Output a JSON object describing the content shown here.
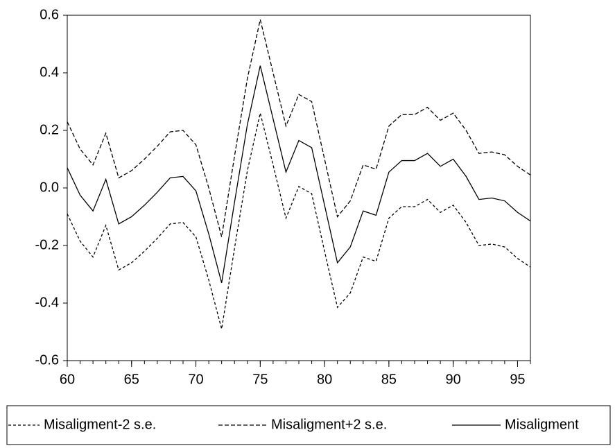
{
  "chart_data": {
    "type": "line",
    "x": [
      60,
      61,
      62,
      63,
      64,
      65,
      66,
      67,
      68,
      69,
      70,
      71,
      72,
      73,
      74,
      75,
      76,
      77,
      78,
      79,
      80,
      81,
      82,
      83,
      84,
      85,
      86,
      87,
      88,
      89,
      90,
      91,
      92,
      93,
      94,
      95,
      96
    ],
    "series": [
      {
        "name": "Misaligment-2 s.e.",
        "color": "#000",
        "dash": "4,3",
        "values": [
          -0.09,
          -0.185,
          -0.24,
          -0.13,
          -0.285,
          -0.26,
          -0.22,
          -0.175,
          -0.125,
          -0.12,
          -0.17,
          -0.32,
          -0.49,
          -0.21,
          0.06,
          0.26,
          0.08,
          -0.105,
          0.005,
          -0.02,
          -0.22,
          -0.415,
          -0.365,
          -0.24,
          -0.255,
          -0.105,
          -0.065,
          -0.065,
          -0.04,
          -0.085,
          -0.06,
          -0.12,
          -0.2,
          -0.195,
          -0.205,
          -0.245,
          -0.275
        ]
      },
      {
        "name": "Misaligment+2 s.e.",
        "color": "#000",
        "dash": "6,3",
        "values": [
          0.23,
          0.135,
          0.08,
          0.19,
          0.035,
          0.06,
          0.1,
          0.145,
          0.195,
          0.2,
          0.15,
          0.0,
          -0.17,
          0.11,
          0.38,
          0.585,
          0.4,
          0.215,
          0.325,
          0.3,
          0.1,
          -0.1,
          -0.045,
          0.08,
          0.065,
          0.215,
          0.255,
          0.255,
          0.28,
          0.235,
          0.26,
          0.2,
          0.12,
          0.125,
          0.115,
          0.075,
          0.045
        ]
      },
      {
        "name": "Misaligment",
        "color": "#000",
        "dash": "none",
        "values": [
          0.07,
          -0.025,
          -0.08,
          0.03,
          -0.125,
          -0.1,
          -0.06,
          -0.015,
          0.035,
          0.04,
          -0.01,
          -0.16,
          -0.33,
          -0.05,
          0.22,
          0.425,
          0.24,
          0.055,
          0.165,
          0.14,
          -0.06,
          -0.26,
          -0.205,
          -0.08,
          -0.095,
          0.055,
          0.095,
          0.095,
          0.12,
          0.075,
          0.1,
          0.04,
          -0.04,
          -0.035,
          -0.045,
          -0.085,
          -0.115
        ]
      }
    ],
    "xlim": [
      60,
      96
    ],
    "xticks": [
      60,
      65,
      70,
      75,
      80,
      85,
      90,
      95
    ],
    "ylim": [
      -0.6,
      0.6
    ],
    "yticks": [
      -0.6,
      -0.4,
      -0.2,
      {
        "value": 0,
        "label": "0.0"
      },
      0.2,
      0.4,
      0.6
    ],
    "grid": false,
    "legend": "bottom"
  }
}
